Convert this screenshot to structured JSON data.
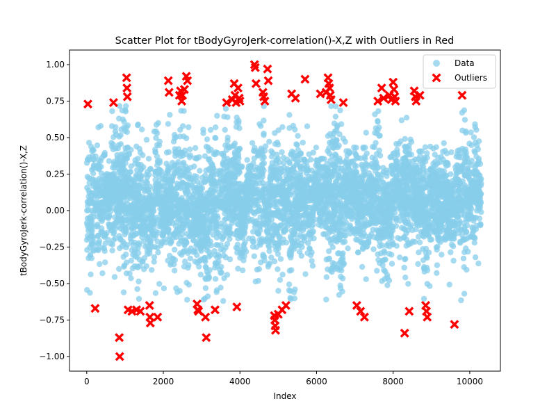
{
  "chart_data": {
    "type": "scatter",
    "title": "Scatter Plot for tBodyGyroJerk-correlation()-X,Z with Outliers in Red",
    "xlabel": "Index",
    "ylabel": "tBodyGyroJerk-correlation()-X,Z",
    "xlim": [
      -450,
      10800
    ],
    "ylim": [
      -1.1,
      1.1
    ],
    "xticks": [
      0,
      2000,
      4000,
      6000,
      8000,
      10000
    ],
    "xtick_labels": [
      "0",
      "2000",
      "4000",
      "6000",
      "8000",
      "10000"
    ],
    "yticks": [
      -1.0,
      -0.75,
      -0.5,
      -0.25,
      0.0,
      0.25,
      0.5,
      0.75,
      1.0
    ],
    "ytick_labels": [
      "−1.00",
      "−0.75",
      "−0.50",
      "−0.25",
      "0.00",
      "0.25",
      "0.50",
      "0.75",
      "1.00"
    ],
    "grid": false,
    "legend_position": "top-right",
    "data_range": {
      "x_min": 0,
      "x_max": 10298,
      "count": 10299
    },
    "series": [
      {
        "name": "Data",
        "color": "#87ceeb",
        "marker": "circle",
        "description_points": "dense cloud, mostly between -0.5 and 0.6"
      },
      {
        "name": "Outliers",
        "color": "#ff0000",
        "marker": "x-filled",
        "points": [
          [
            30,
            0.73
          ],
          [
            220,
            -0.67
          ],
          [
            700,
            0.74
          ],
          [
            850,
            -0.87
          ],
          [
            860,
            -1.0
          ],
          [
            1040,
            0.91
          ],
          [
            1050,
            0.84
          ],
          [
            1060,
            0.78
          ],
          [
            1080,
            -0.68
          ],
          [
            1180,
            -0.69
          ],
          [
            1300,
            -0.68
          ],
          [
            1400,
            -0.69
          ],
          [
            1640,
            -0.65
          ],
          [
            1650,
            -0.73
          ],
          [
            1660,
            -0.77
          ],
          [
            1850,
            -0.73
          ],
          [
            2130,
            0.89
          ],
          [
            2150,
            0.81
          ],
          [
            2420,
            0.79
          ],
          [
            2450,
            0.82
          ],
          [
            2480,
            0.75
          ],
          [
            2500,
            0.79
          ],
          [
            2550,
            0.83
          ],
          [
            2600,
            0.92
          ],
          [
            2630,
            0.89
          ],
          [
            2880,
            -0.64
          ],
          [
            2900,
            -0.68
          ],
          [
            2920,
            -0.69
          ],
          [
            3100,
            -0.73
          ],
          [
            3120,
            -0.87
          ],
          [
            3350,
            -0.68
          ],
          [
            3650,
            0.74
          ],
          [
            3800,
            0.76
          ],
          [
            3850,
            0.87
          ],
          [
            3870,
            0.79
          ],
          [
            3900,
            0.74
          ],
          [
            3920,
            -0.66
          ],
          [
            3950,
            0.84
          ],
          [
            3980,
            0.77
          ],
          [
            4000,
            0.75
          ],
          [
            4380,
            1.0
          ],
          [
            4400,
            0.98
          ],
          [
            4420,
            0.87
          ],
          [
            4600,
            0.81
          ],
          [
            4620,
            0.78
          ],
          [
            4650,
            0.75
          ],
          [
            4720,
            0.97
          ],
          [
            4740,
            0.89
          ],
          [
            4900,
            -0.72
          ],
          [
            4910,
            -0.75
          ],
          [
            4920,
            -0.79
          ],
          [
            4930,
            -0.82
          ],
          [
            5000,
            -0.71
          ],
          [
            5100,
            -0.68
          ],
          [
            5200,
            -0.65
          ],
          [
            5350,
            0.8
          ],
          [
            5450,
            0.77
          ],
          [
            5700,
            0.9
          ],
          [
            6100,
            0.8
          ],
          [
            6250,
            0.81
          ],
          [
            6300,
            0.91
          ],
          [
            6320,
            0.87
          ],
          [
            6340,
            0.84
          ],
          [
            6360,
            0.79
          ],
          [
            6380,
            0.76
          ],
          [
            6700,
            0.74
          ],
          [
            7050,
            -0.65
          ],
          [
            7150,
            -0.69
          ],
          [
            7250,
            -0.73
          ],
          [
            7600,
            0.75
          ],
          [
            7700,
            0.84
          ],
          [
            7750,
            0.77
          ],
          [
            7900,
            0.79
          ],
          [
            7950,
            0.76
          ],
          [
            8000,
            0.88
          ],
          [
            8020,
            0.83
          ],
          [
            8040,
            0.78
          ],
          [
            8060,
            0.75
          ],
          [
            8300,
            -0.84
          ],
          [
            8420,
            -0.69
          ],
          [
            8550,
            0.82
          ],
          [
            8580,
            0.78
          ],
          [
            8600,
            0.75
          ],
          [
            8700,
            0.79
          ],
          [
            8850,
            -0.65
          ],
          [
            8870,
            -0.69
          ],
          [
            8890,
            -0.73
          ],
          [
            9600,
            -0.78
          ],
          [
            9800,
            0.79
          ]
        ]
      }
    ]
  }
}
